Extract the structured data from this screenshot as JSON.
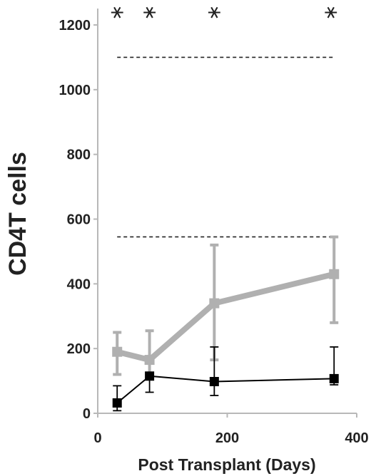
{
  "chart_data": {
    "type": "line",
    "title": "",
    "xlabel": "Post Transplant (Days)",
    "ylabel": "CD4T cells",
    "xlim": [
      0,
      400
    ],
    "ylim": [
      0,
      1200
    ],
    "xticks": [
      0,
      200,
      400
    ],
    "yticks": [
      0,
      200,
      400,
      600,
      800,
      1000,
      1200
    ],
    "grid": false,
    "legend": "none",
    "reference_lines": [
      {
        "y": 1100,
        "style": "dashed",
        "x_range": [
          30,
          365
        ]
      },
      {
        "y": 545,
        "style": "dashed",
        "x_range": [
          30,
          365
        ]
      }
    ],
    "significance_markers": {
      "symbol": "⚹",
      "x": [
        30,
        80,
        180,
        360
      ]
    },
    "series": [
      {
        "color": "#b0b0b0",
        "marker": "square",
        "points": [
          {
            "x": 30,
            "y": 190,
            "err_low": 120,
            "err_high": 250
          },
          {
            "x": 80,
            "y": 165,
            "err_low": 115,
            "err_high": 255
          },
          {
            "x": 180,
            "y": 340,
            "err_low": 165,
            "err_high": 520
          },
          {
            "x": 365,
            "y": 430,
            "err_low": 280,
            "err_high": 545
          }
        ]
      },
      {
        "color": "#000000",
        "marker": "square",
        "points": [
          {
            "x": 30,
            "y": 32,
            "err_low": 8,
            "err_high": 85
          },
          {
            "x": 80,
            "y": 115,
            "err_low": 65,
            "err_high": 115
          },
          {
            "x": 180,
            "y": 98,
            "err_low": 55,
            "err_high": 205
          },
          {
            "x": 365,
            "y": 107,
            "err_low": 88,
            "err_high": 205
          }
        ]
      }
    ]
  }
}
